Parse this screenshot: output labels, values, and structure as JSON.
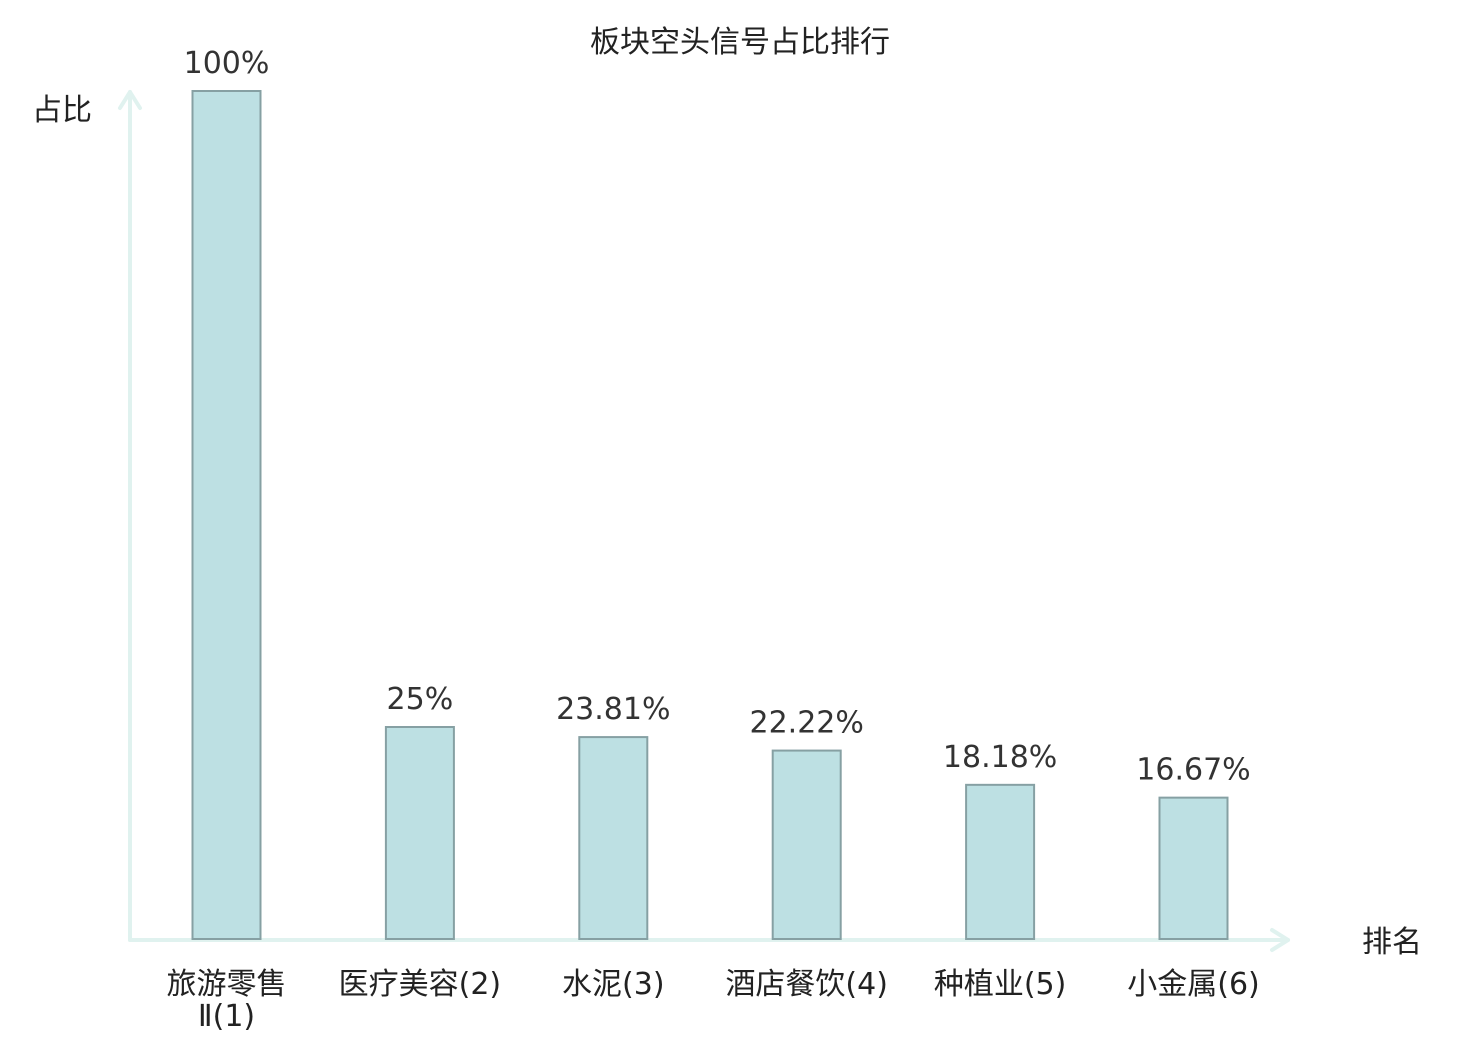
{
  "chart_data": {
    "type": "bar",
    "title": "板块空头信号占比排行",
    "ylabel": "占比",
    "xlabel": "排名",
    "categories": [
      {
        "name": "旅游零售",
        "name_line2": "Ⅱ",
        "rank": "(1)",
        "highlight": false
      },
      {
        "name": "医疗美容",
        "rank": "(2)",
        "highlight": false
      },
      {
        "name": "水泥",
        "rank": "(3)",
        "highlight": false
      },
      {
        "name": "酒店餐饮",
        "rank": "(4)",
        "highlight": false
      },
      {
        "name": "种植业",
        "rank": "(5)",
        "highlight": false
      },
      {
        "name": "小金属",
        "rank": "(6)",
        "highlight": true
      }
    ],
    "values": [
      100,
      25,
      23.81,
      22.22,
      18.18,
      16.67
    ],
    "value_labels": [
      "100%",
      "25%",
      "23.81%",
      "22.22%",
      "18.18%",
      "16.67%"
    ],
    "ylim": [
      0,
      100
    ],
    "grid": false,
    "colors": {
      "bar_fill": "#bde0e3",
      "bar_stroke": "#86a0a3",
      "axis": "#e0f2ef",
      "highlight_label": "#e00000",
      "text": "#222222"
    }
  }
}
